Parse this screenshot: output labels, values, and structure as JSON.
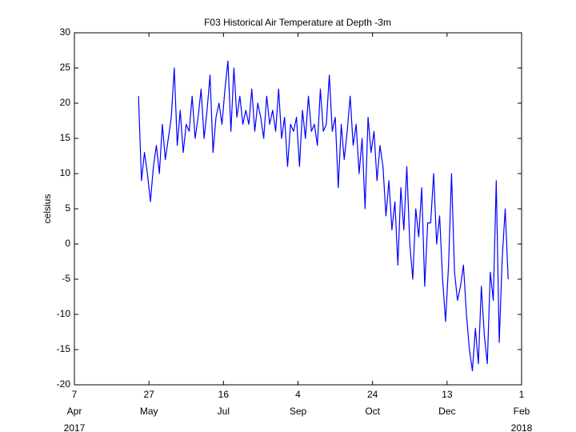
{
  "chart_data": {
    "type": "line",
    "title": "F03 Historical Air Temperature at Depth -3m",
    "y_label": "celsius",
    "color": "#0000ff",
    "x": [
      "2017-05-20",
      "2017-05-22",
      "2017-05-24",
      "2017-05-26",
      "2017-05-28",
      "2017-05-30",
      "2017-06-01",
      "2017-06-03",
      "2017-06-05",
      "2017-06-07",
      "2017-06-09",
      "2017-06-11",
      "2017-06-13",
      "2017-06-15",
      "2017-06-17",
      "2017-06-19",
      "2017-06-21",
      "2017-06-23",
      "2017-06-25",
      "2017-06-27",
      "2017-06-29",
      "2017-07-01",
      "2017-07-03",
      "2017-07-05",
      "2017-07-07",
      "2017-07-09",
      "2017-07-11",
      "2017-07-13",
      "2017-07-15",
      "2017-07-17",
      "2017-07-19",
      "2017-07-21",
      "2017-07-23",
      "2017-07-25",
      "2017-07-27",
      "2017-07-29",
      "2017-07-31",
      "2017-08-02",
      "2017-08-04",
      "2017-08-06",
      "2017-08-08",
      "2017-08-10",
      "2017-08-12",
      "2017-08-14",
      "2017-08-16",
      "2017-08-18",
      "2017-08-20",
      "2017-08-22",
      "2017-08-24",
      "2017-08-26",
      "2017-08-28",
      "2017-08-30",
      "2017-09-01",
      "2017-09-03",
      "2017-09-05",
      "2017-09-07",
      "2017-09-09",
      "2017-09-11",
      "2017-09-13",
      "2017-09-15",
      "2017-09-17",
      "2017-09-19",
      "2017-09-21",
      "2017-09-23",
      "2017-09-25",
      "2017-09-27",
      "2017-09-29",
      "2017-10-01",
      "2017-10-03",
      "2017-10-05",
      "2017-10-07",
      "2017-10-09",
      "2017-10-11",
      "2017-10-13",
      "2017-10-15",
      "2017-10-17",
      "2017-10-19",
      "2017-10-21",
      "2017-10-23",
      "2017-10-25",
      "2017-10-27",
      "2017-10-29",
      "2017-10-31",
      "2017-11-02",
      "2017-11-04",
      "2017-11-06",
      "2017-11-08",
      "2017-11-10",
      "2017-11-12",
      "2017-11-14",
      "2017-11-16",
      "2017-11-18",
      "2017-11-20",
      "2017-11-22",
      "2017-11-24",
      "2017-11-26",
      "2017-11-28",
      "2017-11-30",
      "2017-12-02",
      "2017-12-04",
      "2017-12-06",
      "2017-12-08",
      "2017-12-10",
      "2017-12-12",
      "2017-12-14",
      "2017-12-16",
      "2017-12-18",
      "2017-12-20",
      "2017-12-22",
      "2017-12-24",
      "2017-12-26",
      "2017-12-28",
      "2017-12-30",
      "2018-01-01",
      "2018-01-03",
      "2018-01-05",
      "2018-01-07",
      "2018-01-09",
      "2018-01-11",
      "2018-01-13",
      "2018-01-15",
      "2018-01-17",
      "2018-01-19",
      "2018-01-21",
      "2018-01-23"
    ],
    "values": [
      21,
      9,
      13,
      10,
      6,
      11,
      14,
      10,
      17,
      12,
      15,
      18,
      25,
      14,
      19,
      13,
      17,
      16,
      21,
      15,
      18,
      22,
      15,
      19,
      24,
      13,
      18,
      20,
      17,
      22,
      26,
      16,
      25,
      18,
      21,
      17,
      19,
      17,
      22,
      16,
      20,
      18,
      15,
      21,
      17,
      19,
      16,
      22,
      15,
      18,
      11,
      17,
      16,
      18,
      11,
      19,
      15,
      21,
      16,
      17,
      14,
      22,
      16,
      17,
      24,
      16,
      18,
      8,
      17,
      12,
      16,
      21,
      14,
      17,
      10,
      15,
      5,
      18,
      13,
      16,
      9,
      14,
      11,
      4,
      9,
      2,
      6,
      -3,
      8,
      2,
      11,
      0,
      -5,
      5,
      1,
      8,
      -6,
      3,
      3,
      10,
      0,
      4,
      -5,
      -11,
      -3,
      10,
      -4,
      -8,
      -6,
      -3,
      -10,
      -15,
      -18,
      -12,
      -17,
      -6,
      -13,
      -17,
      -4,
      -8,
      9,
      -14,
      -2,
      5,
      -5
    ],
    "xlim": [
      "2017-04-07",
      "2018-02-01"
    ],
    "xticks": [
      {
        "value": "2017-04-07",
        "label": [
          "7",
          "Apr",
          "2017"
        ]
      },
      {
        "value": "2017-05-27",
        "label": [
          "27",
          "May"
        ]
      },
      {
        "value": "2017-07-16",
        "label": [
          "16",
          "Jul"
        ]
      },
      {
        "value": "2017-09-04",
        "label": [
          "4",
          "Sep"
        ]
      },
      {
        "value": "2017-10-24",
        "label": [
          "24",
          "Oct"
        ]
      },
      {
        "value": "2017-12-13",
        "label": [
          "13",
          "Dec"
        ]
      },
      {
        "value": "2018-02-01",
        "label": [
          "1",
          "Feb",
          "2018"
        ]
      }
    ],
    "ylim": [
      -20,
      30
    ],
    "yticks": [
      -20,
      -15,
      -10,
      -5,
      0,
      5,
      10,
      15,
      20,
      25,
      30
    ],
    "grid": false
  }
}
